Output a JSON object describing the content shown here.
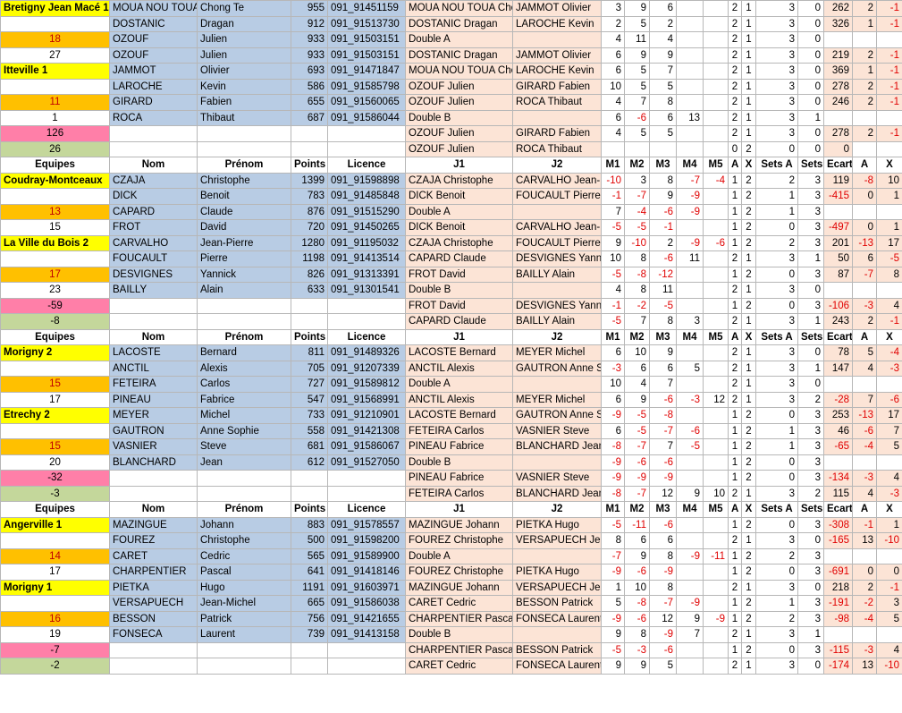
{
  "blocks": [
    {
      "rows": [
        [
          "Bretigny Jean Macé 1",
          "MOUA NOU TOUA",
          "Chong Te",
          955,
          "091_91451159",
          "MOUA NOU TOUA Cho",
          "JAMMOT Olivier",
          3,
          9,
          6,
          null,
          null,
          2,
          1,
          3,
          0,
          262,
          2,
          -1
        ],
        [
          null,
          "DOSTANIC",
          "Dragan",
          912,
          "091_91513730",
          "DOSTANIC Dragan",
          "LAROCHE Kevin",
          2,
          5,
          2,
          null,
          null,
          2,
          1,
          3,
          0,
          326,
          1,
          -1
        ],
        [
          18,
          "OZOUF",
          "Julien",
          933,
          "091_91503151",
          "Double A",
          null,
          4,
          11,
          4,
          null,
          null,
          2,
          1,
          3,
          0,
          null,
          null,
          null
        ],
        [
          27,
          "OZOUF",
          "Julien",
          933,
          "091_91503151",
          "DOSTANIC Dragan",
          "JAMMOT Olivier",
          6,
          9,
          9,
          null,
          null,
          2,
          1,
          3,
          0,
          219,
          2,
          -1
        ],
        [
          "Itteville 1",
          "JAMMOT",
          "Olivier",
          693,
          "091_91471847",
          "MOUA NOU TOUA Cho",
          "LAROCHE Kevin",
          6,
          5,
          7,
          null,
          null,
          2,
          1,
          3,
          0,
          369,
          1,
          -1
        ],
        [
          null,
          "LAROCHE",
          "Kevin",
          586,
          "091_91585798",
          "OZOUF Julien",
          "GIRARD Fabien",
          10,
          5,
          5,
          null,
          null,
          2,
          1,
          3,
          0,
          278,
          2,
          -1
        ],
        [
          11,
          "GIRARD",
          "Fabien",
          655,
          "091_91560065",
          "OZOUF Julien",
          "ROCA Thibaut",
          4,
          7,
          8,
          null,
          null,
          2,
          1,
          3,
          0,
          246,
          2,
          -1
        ],
        [
          1,
          "ROCA",
          "Thibaut",
          687,
          "091_91586044",
          "Double B",
          null,
          6,
          -6,
          6,
          13,
          null,
          2,
          1,
          3,
          1,
          null,
          null,
          null
        ],
        [
          126,
          null,
          null,
          null,
          null,
          "OZOUF Julien",
          "GIRARD Fabien",
          4,
          5,
          5,
          null,
          null,
          2,
          1,
          3,
          0,
          278,
          2,
          -1
        ],
        [
          26,
          null,
          null,
          null,
          null,
          "OZOUF Julien",
          "ROCA Thibaut",
          null,
          null,
          null,
          null,
          null,
          0,
          2,
          0,
          0,
          0,
          null,
          null
        ]
      ]
    },
    {
      "header": [
        "Equipes",
        "Nom",
        "Prénom",
        "Points",
        "Licence",
        "J1",
        "J2",
        "M1",
        "M2",
        "M3",
        "M4",
        "M5",
        "A",
        "X",
        "Sets A",
        "Sets X",
        "Ecart",
        "A",
        "X"
      ],
      "rows": [
        [
          "Coudray-Montceaux",
          "CZAJA",
          "Christophe",
          1399,
          "091_91598898",
          "CZAJA Christophe",
          "CARVALHO Jean-Pi",
          -10,
          3,
          8,
          -7,
          -4,
          1,
          2,
          2,
          3,
          119,
          -8,
          10
        ],
        [
          null,
          "DICK",
          "Benoit",
          783,
          "091_91485848",
          "DICK Benoit",
          "FOUCAULT Pierre",
          -1,
          -7,
          9,
          -9,
          null,
          1,
          2,
          1,
          3,
          -415,
          0,
          1
        ],
        [
          13,
          "CAPARD",
          "Claude",
          876,
          "091_91515290",
          "Double A",
          null,
          7,
          -4,
          -6,
          -9,
          null,
          1,
          2,
          1,
          3,
          null,
          null,
          null
        ],
        [
          15,
          "FROT",
          "David",
          720,
          "091_91450265",
          "DICK Benoit",
          "CARVALHO Jean-Pi",
          -5,
          -5,
          -1,
          null,
          null,
          1,
          2,
          0,
          3,
          -497,
          0,
          1
        ],
        [
          "La Ville du Bois 2",
          "CARVALHO",
          "Jean-Pierre",
          1280,
          "091_91195032",
          "CZAJA Christophe",
          "FOUCAULT Pierre",
          9,
          -10,
          2,
          -9,
          -6,
          1,
          2,
          2,
          3,
          201,
          -13,
          17
        ],
        [
          null,
          "FOUCAULT",
          "Pierre",
          1198,
          "091_91413514",
          "CAPARD Claude",
          "DESVIGNES Yannic",
          10,
          8,
          -6,
          11,
          null,
          2,
          1,
          3,
          1,
          50,
          6,
          -5
        ],
        [
          17,
          "DESVIGNES",
          "Yannick",
          826,
          "091_91313391",
          "FROT David",
          "BAILLY Alain",
          -5,
          -8,
          -12,
          null,
          null,
          1,
          2,
          0,
          3,
          87,
          -7,
          8
        ],
        [
          23,
          "BAILLY",
          "Alain",
          633,
          "091_91301541",
          "Double B",
          null,
          4,
          8,
          11,
          null,
          null,
          2,
          1,
          3,
          0,
          null,
          null,
          null
        ],
        [
          -59,
          null,
          null,
          null,
          null,
          "FROT David",
          "DESVIGNES Yannic",
          -1,
          -2,
          -5,
          null,
          null,
          1,
          2,
          0,
          3,
          -106,
          -3,
          4
        ],
        [
          -8,
          null,
          null,
          null,
          null,
          "CAPARD Claude",
          "BAILLY Alain",
          -5,
          7,
          8,
          3,
          null,
          2,
          1,
          3,
          1,
          243,
          2,
          -1
        ]
      ]
    },
    {
      "header": [
        "Equipes",
        "Nom",
        "Prénom",
        "Points",
        "Licence",
        "J1",
        "J2",
        "M1",
        "M2",
        "M3",
        "M4",
        "M5",
        "A",
        "X",
        "Sets A",
        "Sets X",
        "Ecart",
        "A",
        "X"
      ],
      "rows": [
        [
          "Morigny 2",
          "LACOSTE",
          "Bernard",
          811,
          "091_91489326",
          "LACOSTE Bernard",
          "MEYER Michel",
          6,
          10,
          9,
          null,
          null,
          2,
          1,
          3,
          0,
          78,
          5,
          -4
        ],
        [
          null,
          "ANCTIL",
          "Alexis",
          705,
          "091_91207339",
          "ANCTIL Alexis",
          "GAUTRON Anne Sc",
          -3,
          6,
          6,
          5,
          null,
          2,
          1,
          3,
          1,
          147,
          4,
          -3
        ],
        [
          15,
          "FETEIRA",
          "Carlos",
          727,
          "091_91589812",
          "Double A",
          null,
          10,
          4,
          7,
          null,
          null,
          2,
          1,
          3,
          0,
          null,
          null,
          null
        ],
        [
          17,
          "PINEAU",
          "Fabrice",
          547,
          "091_91568991",
          "ANCTIL Alexis",
          "MEYER Michel",
          6,
          9,
          -6,
          -3,
          12,
          2,
          1,
          3,
          2,
          -28,
          7,
          -6
        ],
        [
          "Etrechy 2",
          "MEYER",
          "Michel",
          733,
          "091_91210901",
          "LACOSTE Bernard",
          "GAUTRON Anne Sc",
          -9,
          -5,
          -8,
          null,
          null,
          1,
          2,
          0,
          3,
          253,
          -13,
          17
        ],
        [
          null,
          "GAUTRON",
          "Anne Sophie",
          558,
          "091_91421308",
          "FETEIRA Carlos",
          "VASNIER Steve",
          6,
          -5,
          -7,
          -6,
          null,
          1,
          2,
          1,
          3,
          46,
          -6,
          7
        ],
        [
          15,
          "VASNIER",
          "Steve",
          681,
          "091_91586067",
          "PINEAU Fabrice",
          "BLANCHARD Jean",
          -8,
          -7,
          7,
          -5,
          null,
          1,
          2,
          1,
          3,
          -65,
          -4,
          5
        ],
        [
          20,
          "BLANCHARD",
          "Jean",
          612,
          "091_91527050",
          "Double B",
          null,
          -9,
          -6,
          -6,
          null,
          null,
          1,
          2,
          0,
          3,
          null,
          null,
          null
        ],
        [
          -32,
          null,
          null,
          null,
          null,
          "PINEAU Fabrice",
          "VASNIER Steve",
          -9,
          -9,
          -9,
          null,
          null,
          1,
          2,
          0,
          3,
          -134,
          -3,
          4
        ],
        [
          -3,
          null,
          null,
          null,
          null,
          "FETEIRA Carlos",
          "BLANCHARD Jean",
          -8,
          -7,
          12,
          9,
          10,
          2,
          1,
          3,
          2,
          115,
          4,
          -3
        ]
      ]
    },
    {
      "header": [
        "Equipes",
        "Nom",
        "Prénom",
        "Points",
        "Licence",
        "J1",
        "J2",
        "M1",
        "M2",
        "M3",
        "M4",
        "M5",
        "A",
        "X",
        "Sets A",
        "Sets X",
        "Ecart",
        "A",
        "X"
      ],
      "rows": [
        [
          "Angerville 1",
          "MAZINGUE",
          "Johann",
          883,
          "091_91578557",
          "MAZINGUE Johann",
          "PIETKA Hugo",
          -5,
          -11,
          -6,
          null,
          null,
          1,
          2,
          0,
          3,
          -308,
          -1,
          1
        ],
        [
          null,
          "FOUREZ",
          "Christophe",
          500,
          "091_91598200",
          "FOUREZ Christophe",
          "VERSAPUECH Jean-",
          8,
          6,
          6,
          null,
          null,
          2,
          1,
          3,
          0,
          -165,
          13,
          -10
        ],
        [
          14,
          "CARET",
          "Cedric",
          565,
          "091_91589900",
          "Double A",
          null,
          -7,
          9,
          8,
          -9,
          -11,
          1,
          2,
          2,
          3,
          null,
          null,
          null
        ],
        [
          17,
          "CHARPENTIER",
          "Pascal",
          641,
          "091_91418146",
          "FOUREZ Christophe",
          "PIETKA Hugo",
          -9,
          -6,
          -9,
          null,
          null,
          1,
          2,
          0,
          3,
          -691,
          0,
          0
        ],
        [
          "Morigny 1",
          "PIETKA",
          "Hugo",
          1191,
          "091_91603971",
          "MAZINGUE Johann",
          "VERSAPUECH Jean-",
          1,
          10,
          8,
          null,
          null,
          2,
          1,
          3,
          0,
          218,
          2,
          -1
        ],
        [
          null,
          "VERSAPUECH",
          "Jean-Michel",
          665,
          "091_91586038",
          "CARET Cedric",
          "BESSON Patrick",
          5,
          -8,
          -7,
          -9,
          null,
          1,
          2,
          1,
          3,
          -191,
          -2,
          3
        ],
        [
          16,
          "BESSON",
          "Patrick",
          756,
          "091_91421655",
          "CHARPENTIER Pascal",
          "FONSECA Laurent",
          -9,
          -6,
          12,
          9,
          -9,
          1,
          2,
          2,
          3,
          -98,
          -4,
          5
        ],
        [
          19,
          "FONSECA",
          "Laurent",
          739,
          "091_91413158",
          "Double B",
          null,
          9,
          8,
          -9,
          7,
          null,
          2,
          1,
          3,
          1,
          null,
          null,
          null
        ],
        [
          -7,
          null,
          null,
          null,
          null,
          "CHARPENTIER Pascal",
          "BESSON Patrick",
          -5,
          -3,
          -6,
          null,
          null,
          1,
          2,
          0,
          3,
          -115,
          -3,
          4
        ],
        [
          -2,
          null,
          null,
          null,
          null,
          "CARET Cedric",
          "FONSECA Laurent",
          9,
          9,
          5,
          null,
          null,
          2,
          1,
          3,
          0,
          -174,
          13,
          -10
        ]
      ]
    }
  ]
}
